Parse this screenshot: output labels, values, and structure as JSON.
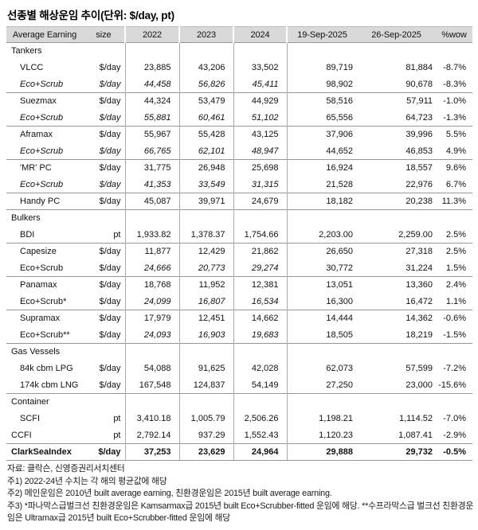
{
  "title": "선종별 해상운임 추이(단위:  $/day, pt)",
  "table": {
    "columns": [
      "Average Earning",
      "size",
      "2022",
      "2023",
      "2024",
      "19-Sep-2025",
      "26-Sep-2025",
      "%wow"
    ],
    "rows": [
      {
        "type": "section",
        "label": "Tankers"
      },
      {
        "type": "item",
        "label": "VLCC",
        "unit": "$/day",
        "values": [
          "23,885",
          "43,206",
          "33,502",
          "89,719",
          "81,884",
          "-8.7%"
        ]
      },
      {
        "type": "item",
        "label": "Eco+Scrub",
        "unit": "$/day",
        "italic_label": true,
        "italic_hist": true,
        "values": [
          "44,458",
          "56,826",
          "45,411",
          "98,902",
          "90,678",
          "-8.3%"
        ]
      },
      {
        "type": "item",
        "label": "Suezmax",
        "unit": "$/day",
        "sep": true,
        "values": [
          "44,324",
          "53,479",
          "44,929",
          "58,516",
          "57,911",
          "-1.0%"
        ]
      },
      {
        "type": "item",
        "label": "Eco+Scrub",
        "unit": "$/day",
        "italic_label": true,
        "italic_hist": true,
        "values": [
          "55,881",
          "60,461",
          "51,102",
          "65,556",
          "64,723",
          "-1.3%"
        ]
      },
      {
        "type": "item",
        "label": "Aframax",
        "unit": "$/day",
        "sep": true,
        "values": [
          "55,967",
          "55,428",
          "43,125",
          "37,906",
          "39,996",
          "5.5%"
        ]
      },
      {
        "type": "item",
        "label": "Eco+Scrub",
        "unit": "$/day",
        "italic_label": true,
        "italic_hist": true,
        "values": [
          "66,765",
          "62,101",
          "48,947",
          "44,652",
          "46,853",
          "4.9%"
        ]
      },
      {
        "type": "item",
        "label": "'MR' PC",
        "unit": "$/day",
        "sep": true,
        "values": [
          "31,775",
          "26,948",
          "25,698",
          "16,924",
          "18,557",
          "9.6%"
        ]
      },
      {
        "type": "item",
        "label": "Eco+Scrub",
        "unit": "$/day",
        "italic_label": true,
        "italic_hist": true,
        "values": [
          "41,353",
          "33,549",
          "31,315",
          "21,528",
          "22,976",
          "6.7%"
        ]
      },
      {
        "type": "item",
        "label": "Handy PC",
        "unit": "$/day",
        "sep": true,
        "values": [
          "45,087",
          "39,971",
          "24,679",
          "18,182",
          "20,238",
          "11.3%"
        ]
      },
      {
        "type": "section",
        "label": "Bulkers",
        "sep": true
      },
      {
        "type": "item",
        "label": "BDI",
        "unit": "pt",
        "values": [
          "1,933.82",
          "1,378.37",
          "1,754.66",
          "2,203.00",
          "2,259.00",
          "2.5%"
        ]
      },
      {
        "type": "item",
        "label": "Capesize",
        "unit": "$/day",
        "sep": true,
        "values": [
          "11,877",
          "12,429",
          "21,862",
          "26,650",
          "27,318",
          "2.5%"
        ]
      },
      {
        "type": "item",
        "label": "Eco+Scrub",
        "unit": "$/day",
        "italic_hist": true,
        "values": [
          "24,666",
          "20,773",
          "29,274",
          "30,772",
          "31,224",
          "1.5%"
        ]
      },
      {
        "type": "item",
        "label": "Panamax",
        "unit": "$/day",
        "sep": true,
        "values": [
          "18,768",
          "11,952",
          "12,381",
          "13,051",
          "13,360",
          "2.4%"
        ]
      },
      {
        "type": "item",
        "label": "Eco+Scrub*",
        "unit": "$/day",
        "italic_hist": true,
        "values": [
          "24,099",
          "16,807",
          "16,534",
          "16,300",
          "16,472",
          "1.1%"
        ]
      },
      {
        "type": "item",
        "label": "Supramax",
        "unit": "$/day",
        "sep": true,
        "values": [
          "17,979",
          "12,451",
          "14,662",
          "14,444",
          "14,362",
          "-0.6%"
        ]
      },
      {
        "type": "item",
        "label": "Eco+Scrub**",
        "unit": "$/day",
        "italic_hist": true,
        "values": [
          "24,093",
          "16,903",
          "19,683",
          "18,505",
          "18,219",
          "-1.5%"
        ]
      },
      {
        "type": "section",
        "label": "Gas Vessels",
        "sep": true
      },
      {
        "type": "item",
        "label": "84k cbm LPG",
        "unit": "$/day",
        "values": [
          "54,088",
          "91,625",
          "42,028",
          "62,073",
          "57,599",
          "-7.2%"
        ]
      },
      {
        "type": "item",
        "label": "174k cbm LNG",
        "unit": "$/day",
        "values": [
          "167,548",
          "124,837",
          "54,149",
          "27,250",
          "23,000",
          "-15.6%"
        ]
      },
      {
        "type": "section",
        "label": "Container",
        "sep": true
      },
      {
        "type": "item",
        "label": "SCFI",
        "unit": "pt",
        "values": [
          "3,410.18",
          "1,005.79",
          "2,506.26",
          "1,198.21",
          "1,114.52",
          "-7.0%"
        ]
      },
      {
        "type": "item",
        "label": "CCFI",
        "unit": "pt",
        "indent": 0,
        "values": [
          "2,792.14",
          "937.29",
          "1,552.43",
          "1,120.23",
          "1,087.41",
          "-2.9%"
        ]
      },
      {
        "type": "item",
        "label": "ClarkSeaIndex",
        "unit": "$/day",
        "indent": 0,
        "bold": true,
        "sep": true,
        "values": [
          "37,253",
          "23,629",
          "24,964",
          "29,888",
          "29,732",
          "-0.5%"
        ]
      }
    ]
  },
  "footnotes": [
    "자료: 클락슨, 신영증권리서치센터",
    "주1) 2022-24년 수치는 각 해의 평균값에 해당",
    "주2) 메인운임은 2010년 built average earning, 친환경운임은 2015년 built average earning.",
    "주3) *파나막스급벌크선 친환경운임은 Kamsarmax급 2015년 built Eco+Scrubber-fitted 운임에 해당. **수프라막스급 벌크선 친환경운임은 Ultramax급 2015년 built Eco+Scrubber-fitted 운임에 해당"
  ],
  "colors": {
    "header_bg": "#d9d9d9",
    "rule": "#969696",
    "vline": "#ababab",
    "text": "#111111"
  }
}
